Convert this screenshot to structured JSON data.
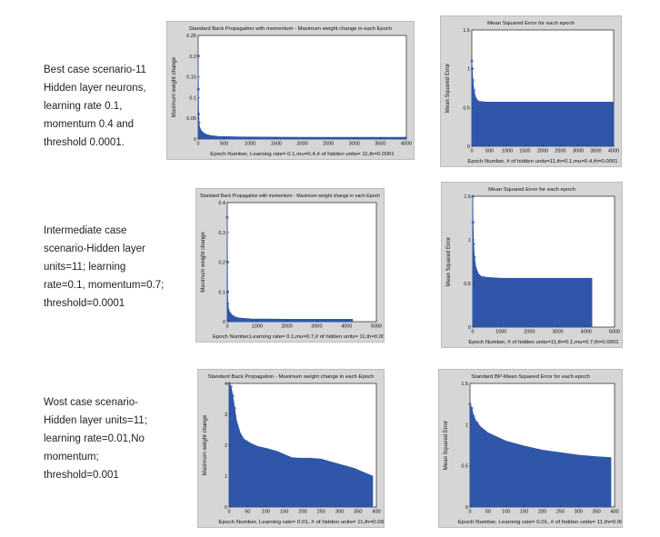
{
  "scenarios": [
    {
      "lines": [
        "Best case scenario-11",
        "Hidden layer neurons,",
        "learning rate 0.1,",
        "momentum 0.4 and",
        "threshold 0.0001."
      ]
    },
    {
      "lines": [
        "Intermediate case",
        "scenario-Hidden layer",
        "units=11; learning",
        "rate=0.1, momentum=0.7;",
        "threshold=0.0001"
      ]
    },
    {
      "lines": [
        "Wost case scenario-",
        "Hidden layer units=11;",
        "learning rate=0.01,No",
        "momentum;",
        "threshold=0.001"
      ]
    }
  ],
  "chart_data": [
    {
      "type": "area",
      "title": "Standard Back Propagation with momentum - Maximum weight change in each Epoch",
      "xlabel": "Epoch Number, Learning rate= 0.1,mu=0.4,# of hidden units= 11,th=0.0001",
      "ylabel": "Maximum weight change",
      "xlim": [
        0,
        4000
      ],
      "ylim": [
        0,
        0.25
      ],
      "xticks": [
        "0",
        "500",
        "1000",
        "1500",
        "2000",
        "2500",
        "3000",
        "3500",
        "4000"
      ],
      "yticks": [
        "0",
        "0.05",
        "0.1",
        "0.15",
        "0.2",
        "0.25"
      ],
      "color": "#2f56a8",
      "x": [
        0,
        4,
        8,
        15,
        25,
        40,
        60,
        90,
        130,
        180,
        260,
        400,
        800,
        2000,
        3800,
        3996
      ],
      "y": [
        0.2,
        0.12,
        0.06,
        0.04,
        0.03,
        0.025,
        0.02,
        0.016,
        0.013,
        0.01,
        0.008,
        0.006,
        0.005,
        0.004,
        0.004,
        0.004
      ]
    },
    {
      "type": "area",
      "title": "Mean Squared Error for each epoch",
      "xlabel": "Epoch Number, # of hidden units=11,th=0.1,mu=0.4,th=0.0001",
      "ylabel": "Mean Squared Error",
      "xlim": [
        0,
        4000
      ],
      "ylim": [
        0,
        1.5
      ],
      "xticks": [
        "0",
        "500",
        "1000",
        "1500",
        "2000",
        "2500",
        "3000",
        "3500",
        "4000"
      ],
      "yticks": [
        "0",
        "0.5",
        "1",
        "1.5"
      ],
      "color": "#2f56a8",
      "x": [
        0,
        10,
        30,
        60,
        100,
        150,
        200,
        400,
        1000,
        2000,
        3500,
        3996
      ],
      "y": [
        1.1,
        1.0,
        0.85,
        0.72,
        0.64,
        0.6,
        0.58,
        0.57,
        0.57,
        0.57,
        0.57,
        0.57
      ]
    },
    {
      "type": "area",
      "title": "Standard Back Propagation with momentum - Maximum weight change in each Epoch",
      "xlabel": "Epoch Number,Learning rate= 0.1,mu=0.7,# of hidden units= 11,th=0.0001",
      "ylabel": "Maximum weight change",
      "xlim": [
        0,
        5000
      ],
      "ylim": [
        0,
        0.4
      ],
      "xticks": [
        "0",
        "1000",
        "2000",
        "3000",
        "4000",
        "5000"
      ],
      "yticks": [
        "0",
        "0.1",
        "0.2",
        "0.3",
        "0.4"
      ],
      "color": "#2f56a8",
      "x": [
        0,
        5,
        10,
        20,
        40,
        70,
        110,
        170,
        260,
        400,
        800,
        2000,
        4000,
        4200
      ],
      "y": [
        0.35,
        0.2,
        0.1,
        0.06,
        0.045,
        0.035,
        0.028,
        0.022,
        0.016,
        0.012,
        0.009,
        0.008,
        0.008,
        0.008
      ]
    },
    {
      "type": "area",
      "title": "Mean Squared Error for each epoch",
      "xlabel": "Epoch Number, # of hidden units=11,th=0.1,mu=0.7,th=0.0001",
      "ylabel": "Mean Squared Error",
      "xlim": [
        0,
        5000
      ],
      "ylim": [
        0,
        1.5
      ],
      "xticks": [
        "0",
        "1000",
        "2000",
        "3000",
        "4000",
        "5000"
      ],
      "yticks": [
        "0",
        "0.5",
        "1",
        "1.5"
      ],
      "color": "#2f56a8",
      "x": [
        0,
        10,
        30,
        60,
        100,
        150,
        200,
        300,
        500,
        1000,
        2000,
        4000,
        4200
      ],
      "y": [
        1.5,
        1.2,
        0.95,
        0.8,
        0.7,
        0.65,
        0.61,
        0.58,
        0.57,
        0.56,
        0.56,
        0.56,
        0.56
      ]
    },
    {
      "type": "area",
      "title": "Standard Back Propagation - Maximum weight change in each Epoch",
      "xlabel": "Epoch Number, Learning rate= 0.01, # of hidden units= 11,th=0.001",
      "ylabel": "Maximum weight change",
      "xlim": [
        0,
        400
      ],
      "ylim": [
        0,
        4
      ],
      "xticks": [
        "0",
        "50",
        "100",
        "150",
        "200",
        "250",
        "300",
        "350",
        "400"
      ],
      "yticks": [
        "0",
        "1",
        "2",
        "3",
        "4"
      ],
      "color": "#2f56a8",
      "x": [
        0,
        5,
        10,
        15,
        20,
        30,
        40,
        60,
        80,
        100,
        130,
        150,
        170,
        190,
        220,
        250,
        280,
        310,
        340,
        370,
        390
      ],
      "y": [
        4,
        3.9,
        3.6,
        3.2,
        2.8,
        2.4,
        2.2,
        2.05,
        1.95,
        1.9,
        1.8,
        1.7,
        1.6,
        1.58,
        1.58,
        1.55,
        1.45,
        1.35,
        1.25,
        1.1,
        1.0
      ]
    },
    {
      "type": "area",
      "title": "Standard BP-Mean Squared Error for each epoch",
      "xlabel": "Epoch Number, Learning rate= 0.01, # of hidden units= 11,th=0.001",
      "ylabel": "Mean Squared Error",
      "xlim": [
        0,
        400
      ],
      "ylim": [
        0,
        1.5
      ],
      "xticks": [
        "0",
        "50",
        "100",
        "150",
        "200",
        "250",
        "300",
        "350",
        "400"
      ],
      "yticks": [
        "0",
        "0.5",
        "1",
        "1.5"
      ],
      "color": "#2f56a8",
      "x": [
        0,
        5,
        10,
        20,
        30,
        50,
        75,
        100,
        150,
        200,
        250,
        300,
        350,
        390
      ],
      "y": [
        1.25,
        1.2,
        1.1,
        1.02,
        0.97,
        0.9,
        0.85,
        0.8,
        0.74,
        0.69,
        0.66,
        0.63,
        0.61,
        0.6
      ]
    }
  ]
}
